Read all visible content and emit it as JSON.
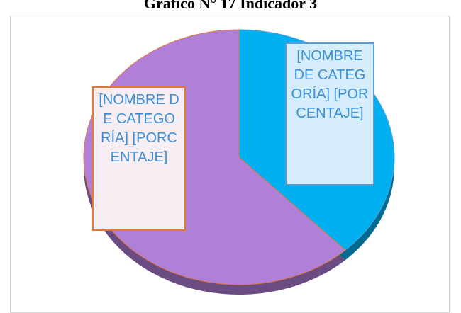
{
  "chart_data": {
    "type": "pie",
    "title": "Gráfico N° 17 Indicador 3",
    "categories": [
      null,
      null
    ],
    "series": [
      {
        "name": null,
        "colors": [
          "#00b0f0",
          "#b07fd8"
        ],
        "values": [
          38,
          62
        ],
        "value_labels": [
          "[NOMBRE DE CATEGORÍA] [PORCENTAJE]",
          "[NOMBRE DE CATEGORÍA] [PORCENTAJE]"
        ]
      }
    ]
  }
}
